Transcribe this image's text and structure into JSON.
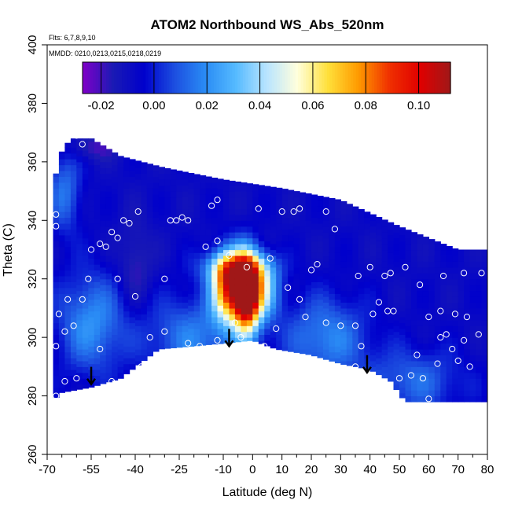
{
  "chart_data": {
    "type": "heatmap",
    "title": "ATOM2 Northbound WS_Abs_520nm",
    "subtitle_flights": "Flts: 6,7,8,9,10",
    "subtitle_dates": "MMDD: 0210,0213,0215,0218,0219",
    "xlabel": "Latitude (deg N)",
    "ylabel": "Theta (C)",
    "xlim": [
      -70,
      80
    ],
    "ylim": [
      260,
      400
    ],
    "xticks": [
      -70,
      -55,
      -40,
      -25,
      -10,
      0,
      10,
      20,
      30,
      40,
      50,
      60,
      70,
      80
    ],
    "xtick_labels": [
      "-70",
      "-55",
      "-40",
      "-25",
      "-10",
      "0",
      "10",
      "20",
      "30",
      "40",
      "50",
      "60",
      "70",
      "80"
    ],
    "xminor": [
      -65,
      -60,
      -50,
      -45,
      -35,
      -30,
      -20,
      -15,
      -5,
      5,
      15,
      25,
      35,
      45,
      55,
      65,
      75
    ],
    "yticks": [
      260,
      280,
      300,
      320,
      340,
      360,
      380,
      400
    ],
    "ytick_labels": [
      "260",
      "280",
      "300",
      "320",
      "340",
      "360",
      "380",
      "400"
    ],
    "colorbar": {
      "range": [
        -0.027,
        0.112
      ],
      "ticks": [
        -0.02,
        0.0,
        0.02,
        0.04,
        0.06,
        0.08,
        0.1
      ],
      "tick_labels": [
        "-0.02",
        "0.00",
        "0.02",
        "0.04",
        "0.06",
        "0.08",
        "0.10"
      ],
      "colors": [
        "#8000c8",
        "#1a1ab4",
        "#0000cc",
        "#1c4ee0",
        "#2a8cf5",
        "#55baff",
        "#b8e4ff",
        "#ffffdd",
        "#ffe03a",
        "#ff9a00",
        "#f03000",
        "#e00000",
        "#a01818"
      ]
    },
    "field": {
      "background": -0.008,
      "blobs": [
        {
          "lat": -2,
          "theta": 315,
          "value": 0.11,
          "sx": 3,
          "sy": 9
        },
        {
          "lat": -8,
          "theta": 317,
          "value": 0.085,
          "sx": 4,
          "sy": 8
        },
        {
          "lat": 3,
          "theta": 316,
          "value": 0.04,
          "sx": 4,
          "sy": 7
        },
        {
          "lat": -5,
          "theta": 324,
          "value": 0.035,
          "sx": 8,
          "sy": 4
        },
        {
          "lat": -55,
          "theta": 305,
          "value": 0.02,
          "sx": 8,
          "sy": 12
        },
        {
          "lat": -20,
          "theta": 300,
          "value": 0.016,
          "sx": 12,
          "sy": 10
        },
        {
          "lat": 25,
          "theta": 300,
          "value": 0.018,
          "sx": 10,
          "sy": 10
        },
        {
          "lat": -64,
          "theta": 350,
          "value": 0.014,
          "sx": 4,
          "sy": 10
        },
        {
          "lat": -40,
          "theta": 325,
          "value": -0.02,
          "sx": 4,
          "sy": 10
        },
        {
          "lat": -55,
          "theta": 365,
          "value": -0.02,
          "sx": 6,
          "sy": 3
        },
        {
          "lat": 55,
          "theta": 285,
          "value": 0.012,
          "sx": 12,
          "sy": 8
        }
      ],
      "upper_boundary": [
        [
          -68,
          350
        ],
        [
          -66,
          362
        ],
        [
          -62,
          368
        ],
        [
          -55,
          368
        ],
        [
          -45,
          362
        ],
        [
          -30,
          358
        ],
        [
          -10,
          354
        ],
        [
          10,
          351
        ],
        [
          30,
          347
        ],
        [
          50,
          338
        ],
        [
          70,
          330
        ],
        [
          80,
          330
        ]
      ],
      "lower_boundary": [
        [
          -68,
          278
        ],
        [
          -66,
          281
        ],
        [
          -55,
          283
        ],
        [
          -45,
          286
        ],
        [
          -32,
          296
        ],
        [
          -10,
          298
        ],
        [
          0,
          299
        ],
        [
          8,
          296
        ],
        [
          20,
          294
        ],
        [
          30,
          291
        ],
        [
          40,
          289
        ],
        [
          47,
          285
        ],
        [
          52,
          278
        ],
        [
          80,
          278
        ]
      ]
    },
    "points": [
      [
        -60,
        369
      ],
      [
        -58,
        366
      ],
      [
        -67,
        342
      ],
      [
        -67,
        338
      ],
      [
        -55,
        330
      ],
      [
        -48,
        336
      ],
      [
        -44,
        340
      ],
      [
        -39,
        343
      ],
      [
        -52,
        332
      ],
      [
        -50,
        331
      ],
      [
        -46,
        334
      ],
      [
        -42,
        339
      ],
      [
        -28,
        340
      ],
      [
        -26,
        340
      ],
      [
        -24,
        341
      ],
      [
        -22,
        340
      ],
      [
        -14,
        345
      ],
      [
        -12,
        347
      ],
      [
        -16,
        331
      ],
      [
        -12,
        333
      ],
      [
        -8,
        328
      ],
      [
        -2,
        324
      ],
      [
        2,
        344
      ],
      [
        6,
        327
      ],
      [
        10,
        343
      ],
      [
        14,
        343
      ],
      [
        16,
        344
      ],
      [
        20,
        323
      ],
      [
        22,
        325
      ],
      [
        25,
        343
      ],
      [
        28,
        337
      ],
      [
        36,
        321
      ],
      [
        40,
        324
      ],
      [
        45,
        321
      ],
      [
        47,
        322
      ],
      [
        52,
        324
      ],
      [
        57,
        318
      ],
      [
        65,
        321
      ],
      [
        72,
        322
      ],
      [
        78,
        322
      ],
      [
        -56,
        320
      ],
      [
        -46,
        320
      ],
      [
        -30,
        320
      ],
      [
        -63,
        313
      ],
      [
        -66,
        308
      ],
      [
        -64,
        302
      ],
      [
        -61,
        304
      ],
      [
        -67,
        297
      ],
      [
        -58,
        313
      ],
      [
        -40,
        314
      ],
      [
        -35,
        300
      ],
      [
        -22,
        298
      ],
      [
        -12,
        299
      ],
      [
        -4,
        300
      ],
      [
        4,
        297
      ],
      [
        10,
        292
      ],
      [
        20,
        292
      ],
      [
        26,
        290
      ],
      [
        30,
        288
      ],
      [
        35,
        290
      ],
      [
        40,
        286
      ],
      [
        44,
        284
      ],
      [
        50,
        286
      ],
      [
        54,
        287
      ],
      [
        58,
        286
      ],
      [
        -64,
        285
      ],
      [
        -60,
        286
      ],
      [
        -48,
        285
      ],
      [
        -67,
        280
      ],
      [
        60,
        279
      ],
      [
        64,
        300
      ],
      [
        66,
        301
      ],
      [
        63,
        291
      ],
      [
        68,
        296
      ],
      [
        72,
        299
      ],
      [
        77,
        301
      ],
      [
        60,
        307
      ],
      [
        64,
        309
      ],
      [
        69,
        308
      ],
      [
        73,
        307
      ],
      [
        48,
        309
      ],
      [
        46,
        309
      ],
      [
        43,
        312
      ],
      [
        41,
        308
      ],
      [
        35,
        304
      ],
      [
        30,
        304
      ],
      [
        25,
        305
      ],
      [
        18,
        307
      ],
      [
        16,
        313
      ],
      [
        12,
        317
      ],
      [
        37,
        297
      ],
      [
        56,
        294
      ],
      [
        70,
        292
      ],
      [
        74,
        290
      ],
      [
        8,
        303
      ],
      [
        -6,
        305
      ],
      [
        -18,
        297
      ],
      [
        -30,
        302
      ],
      [
        -38,
        290
      ],
      [
        -52,
        296
      ]
    ],
    "arrows": [
      {
        "lat": -55,
        "theta": 284
      },
      {
        "lat": -8,
        "theta": 297
      },
      {
        "lat": 39,
        "theta": 288
      }
    ]
  }
}
